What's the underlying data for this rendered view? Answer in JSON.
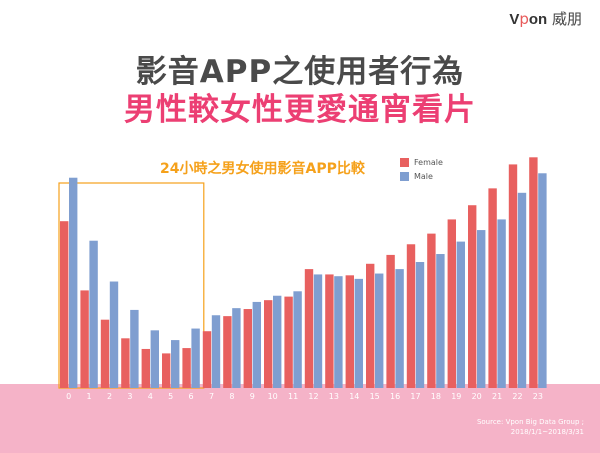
{
  "brand": {
    "v": "V",
    "o": "p",
    "rest": "on",
    "cn": "威朋"
  },
  "heading": {
    "line1": "影音APP之使用者行為",
    "line2": "男性較女性更愛通宵看片"
  },
  "source": {
    "line1": "Source: Vpon Big Data Group ;",
    "line2": "2018/1/1~2018/3/31"
  },
  "colors": {
    "female": "#e8605f",
    "male": "#7f9ed0",
    "highlight": "#f5a11b",
    "band": "#f5b3c8"
  },
  "chart_data": {
    "type": "bar",
    "title": "24小時之男女使用影音APP比較",
    "categories": [
      "0",
      "1",
      "2",
      "3",
      "4",
      "5",
      "6",
      "7",
      "8",
      "9",
      "10",
      "11",
      "12",
      "13",
      "14",
      "15",
      "16",
      "17",
      "18",
      "19",
      "20",
      "21",
      "22",
      "23"
    ],
    "series": [
      {
        "name": "Female",
        "values": [
          188,
          110,
          77,
          56,
          44,
          39,
          45,
          64,
          81,
          89,
          99,
          103,
          134,
          128,
          127,
          140,
          150,
          162,
          174,
          190,
          206,
          225,
          252,
          260
        ]
      },
      {
        "name": "Male",
        "values": [
          237,
          166,
          120,
          88,
          65,
          54,
          67,
          82,
          90,
          97,
          104,
          109,
          128,
          126,
          123,
          129,
          134,
          142,
          151,
          165,
          178,
          190,
          220,
          242
        ]
      }
    ],
    "highlight_range": [
      "0",
      "6"
    ],
    "ylim": [
      0,
      275
    ],
    "xlabel": "",
    "ylabel": "",
    "grid": false,
    "legend": "top-right"
  }
}
